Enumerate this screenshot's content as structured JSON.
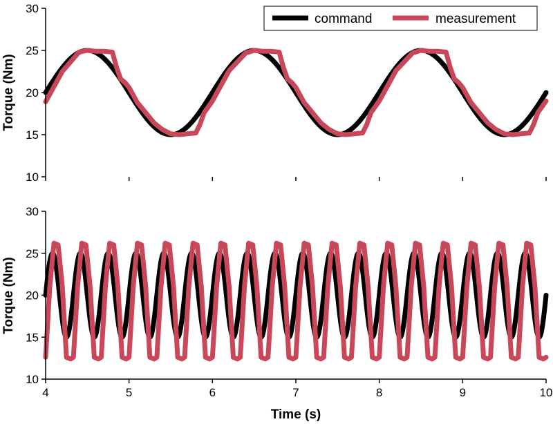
{
  "colors": {
    "command": "#000000",
    "measurement": "#c8485a"
  },
  "legend": {
    "command_label": "command",
    "measurement_label": "measurement",
    "placement": "top-right"
  },
  "chart_data": [
    {
      "type": "line",
      "title": "",
      "xlabel": "",
      "ylabel": "Torque (Nm)",
      "xlim": [
        4,
        10
      ],
      "ylim": [
        10,
        30
      ],
      "yticks": [
        10,
        15,
        20,
        25,
        30
      ],
      "xticks": [
        4,
        5,
        6,
        7,
        8,
        9,
        10
      ],
      "grid": false,
      "series": [
        {
          "name": "command",
          "description_values": "sinusoid, offset 20, amplitude 5, frequency 0.5 Hz, peaks at 4.5, 6.5, 8.5 s",
          "x": [
            4.0,
            4.25,
            4.5,
            4.75,
            5.0,
            5.25,
            5.5,
            5.75,
            6.0,
            6.25,
            6.5,
            6.75,
            7.0,
            7.25,
            7.5,
            7.75,
            8.0,
            8.25,
            8.5,
            8.75,
            9.0,
            9.25,
            9.5,
            9.75,
            10.0
          ],
          "y": [
            20.0,
            23.5,
            25.0,
            23.5,
            20.0,
            16.5,
            15.0,
            16.5,
            20.0,
            23.5,
            25.0,
            23.5,
            20.0,
            16.5,
            15.0,
            16.5,
            20.0,
            23.5,
            25.0,
            23.5,
            20.0,
            16.5,
            15.0,
            16.5,
            20.0
          ]
        },
        {
          "name": "measurement",
          "x": [
            4.0,
            4.2,
            4.4,
            4.5,
            4.6,
            4.7,
            4.8,
            4.85,
            4.9,
            4.95,
            5.0,
            5.1,
            5.2,
            5.3,
            5.4,
            5.5,
            5.6,
            5.7,
            5.8,
            5.85,
            5.9,
            5.95,
            6.0,
            6.2,
            6.4,
            6.5,
            6.6,
            6.7,
            6.8,
            6.85,
            6.9,
            6.95,
            7.0,
            7.1,
            7.2,
            7.3,
            7.4,
            7.5,
            7.6,
            7.7,
            7.8,
            7.85,
            7.9,
            7.95,
            8.0,
            8.2,
            8.4,
            8.5,
            8.6,
            8.7,
            8.8,
            8.85,
            8.9,
            8.95,
            9.0,
            9.1,
            9.2,
            9.3,
            9.4,
            9.5,
            9.6,
            9.7,
            9.8,
            9.85,
            9.9,
            9.95,
            10.0
          ],
          "y": [
            18.9,
            22.5,
            24.8,
            25.0,
            24.9,
            24.9,
            24.8,
            23.0,
            21.6,
            21.2,
            20.6,
            18.8,
            17.6,
            16.4,
            15.6,
            15.1,
            15.0,
            15.1,
            15.2,
            16.2,
            17.6,
            18.3,
            19.0,
            22.6,
            24.7,
            25.0,
            24.9,
            24.9,
            24.8,
            23.0,
            21.6,
            21.2,
            20.6,
            18.8,
            17.6,
            16.4,
            15.6,
            15.1,
            15.0,
            15.1,
            15.2,
            16.2,
            17.6,
            18.3,
            19.0,
            22.6,
            24.7,
            25.0,
            24.9,
            24.9,
            24.8,
            23.0,
            21.6,
            21.2,
            20.6,
            18.8,
            17.6,
            16.4,
            15.6,
            15.1,
            15.0,
            15.1,
            15.2,
            16.2,
            17.6,
            18.3,
            19.0
          ]
        }
      ]
    },
    {
      "type": "line",
      "title": "",
      "xlabel": "Time (s)",
      "ylabel": "Torque (Nm)",
      "xlim": [
        4,
        10
      ],
      "ylim": [
        10,
        30
      ],
      "yticks": [
        10,
        15,
        20,
        25,
        30
      ],
      "xticks": [
        4,
        5,
        6,
        7,
        8,
        9,
        10
      ],
      "grid": false,
      "series": [
        {
          "name": "command",
          "description_values": "sinusoid, offset 20, amplitude 5, frequency 3 Hz",
          "x": [
            4.0,
            4.0833,
            4.1667,
            4.25,
            4.3333,
            4.4167,
            4.5,
            4.5833,
            4.6667,
            4.75,
            4.8333,
            4.9167,
            5.0,
            5.0833,
            5.1667,
            5.25,
            5.3333,
            5.4167,
            5.5,
            5.5833,
            5.6667,
            5.75,
            5.8333,
            5.9167,
            6.0,
            6.0833,
            6.1667,
            6.25,
            6.3333,
            6.4167,
            6.5,
            6.5833,
            6.6667,
            6.75,
            6.8333,
            6.9167,
            7.0,
            7.0833,
            7.1667,
            7.25,
            7.3333,
            7.4167,
            7.5,
            7.5833,
            7.6667,
            7.75,
            7.8333,
            7.9167,
            8.0,
            8.0833,
            8.1667,
            8.25,
            8.3333,
            8.4167,
            8.5,
            8.5833,
            8.6667,
            8.75,
            8.8333,
            8.9167,
            9.0,
            9.0833,
            9.1667,
            9.25,
            9.3333,
            9.4167,
            9.5,
            9.5833,
            9.6667,
            9.75,
            9.8333,
            9.9167,
            10.0
          ],
          "y": [
            20,
            25,
            20,
            15,
            20,
            25,
            20,
            15,
            20,
            25,
            20,
            15,
            20,
            25,
            20,
            15,
            20,
            25,
            20,
            15,
            20,
            25,
            20,
            15,
            20,
            25,
            20,
            15,
            20,
            25,
            20,
            15,
            20,
            25,
            20,
            15,
            20,
            25,
            20,
            15,
            20,
            25,
            20,
            15,
            20,
            25,
            20,
            15,
            20,
            25,
            20,
            15,
            20,
            25,
            20,
            15,
            20,
            25,
            20,
            15,
            20,
            25,
            20,
            15,
            20,
            25,
            20,
            15,
            20,
            25,
            20,
            15,
            20
          ]
        },
        {
          "name": "measurement",
          "description_values": "approx. square-like wave, 12.5 to 26.2, period ~0.333 s",
          "x": [
            4.0,
            4.05,
            4.1,
            4.15,
            4.2,
            4.25,
            4.3,
            4.333
          ],
          "y": [
            12.6,
            21.0,
            26.2,
            26.0,
            21.0,
            12.6,
            12.4,
            12.6
          ]
        }
      ]
    }
  ]
}
